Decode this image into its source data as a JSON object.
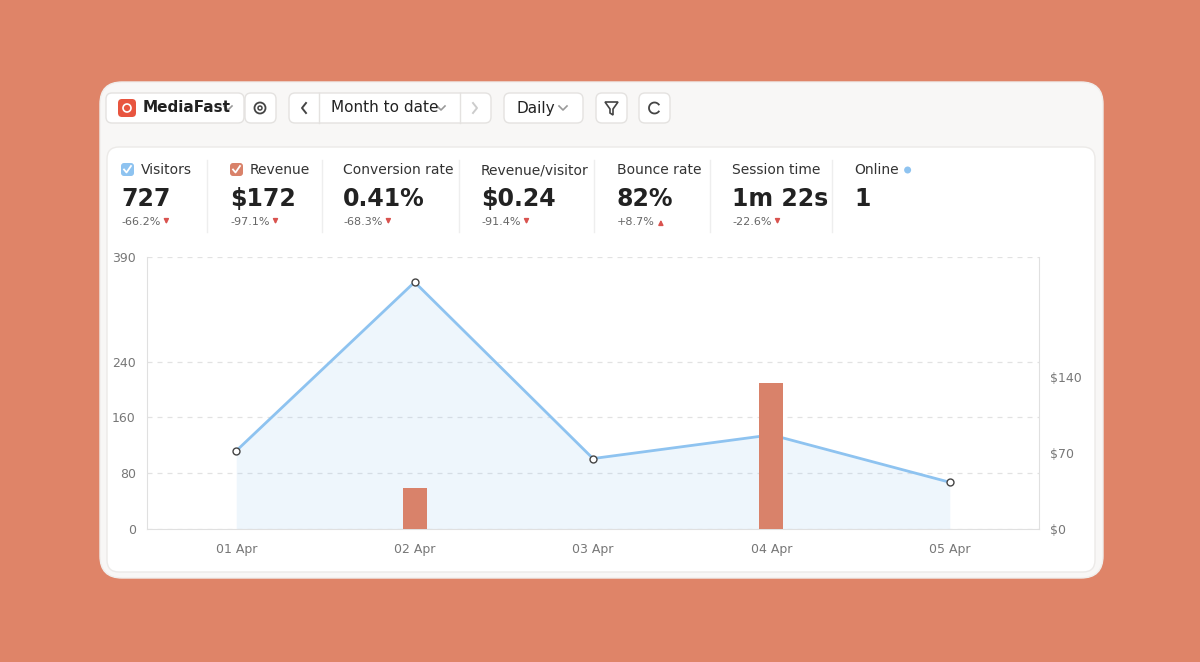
{
  "header": {
    "site": "MediaFast",
    "period": "Month to date",
    "interval": "Daily"
  },
  "metrics": [
    {
      "label": "Visitors",
      "value": "727",
      "change": "-66.2%"
    },
    {
      "label": "Revenue",
      "value": "$172",
      "change": "-97.1%"
    },
    {
      "label": "Conversion rate",
      "value": "0.41%",
      "change": "-68.3%"
    },
    {
      "label": "Revenue/visitor",
      "value": "$0.24",
      "change": "-91.4%"
    },
    {
      "label": "Bounce rate",
      "value": "82%",
      "change": "+8.7%"
    },
    {
      "label": "Session time",
      "value": "1m 22s",
      "change": "-22.6%"
    },
    {
      "label": "Online",
      "value": "1"
    }
  ],
  "chart_data": {
    "type": "line",
    "categories": [
      "01 Apr",
      "02 Apr",
      "03 Apr",
      "04 Apr",
      "05 Apr"
    ],
    "series": [
      {
        "name": "Visitors",
        "type": "line",
        "color": "#8EC3F0",
        "marker": "o",
        "line_style": "solid",
        "values": [
          112,
          354,
          101,
          135,
          67
        ]
      },
      {
        "name": "Revenue",
        "type": "bar",
        "color": "#D9826A",
        "axis": "y2",
        "values": [
          0,
          38,
          0,
          134,
          0
        ]
      }
    ],
    "ylim": [
      0,
      390
    ],
    "yticks": [
      0,
      80,
      160,
      240,
      390
    ],
    "y2lim": [
      0,
      250
    ],
    "y2ticks": [
      {
        "value": 0,
        "label": "$0"
      },
      {
        "value": 70,
        "label": "$70"
      },
      {
        "value": 140,
        "label": "$140"
      }
    ],
    "grid": true
  }
}
